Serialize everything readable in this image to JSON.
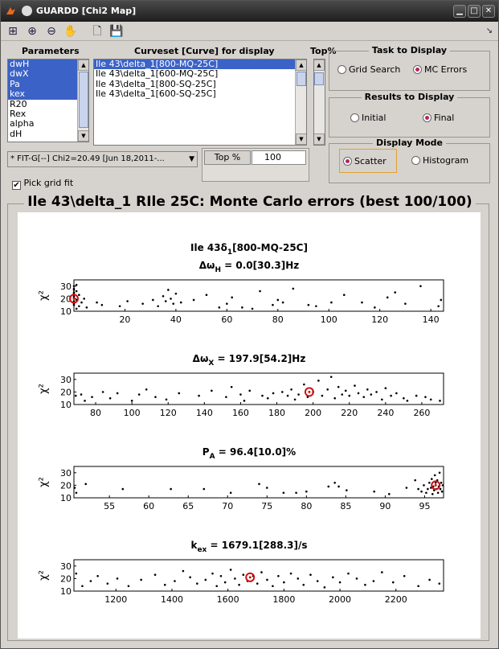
{
  "window": {
    "title": "GUARDD [Chi2 Map]"
  },
  "toolbar": {
    "tools": [
      "layout-icon",
      "zoom-in-icon",
      "zoom-out-icon",
      "pan-hand-icon",
      "new-file-icon",
      "save-icon"
    ]
  },
  "parameters": {
    "label": "Parameters",
    "items": [
      {
        "text": "dwH",
        "sel": true
      },
      {
        "text": "dwX",
        "sel": true
      },
      {
        "text": "Pa",
        "sel": true
      },
      {
        "text": "kex",
        "sel": true
      },
      {
        "text": "R20",
        "sel": false
      },
      {
        "text": "Rex",
        "sel": false
      },
      {
        "text": "alpha",
        "sel": false
      },
      {
        "text": "dH",
        "sel": false
      }
    ]
  },
  "curveset": {
    "label": "Curveset [Curve] for display",
    "items": [
      {
        "text": "Ile 43\\delta_1[800-MQ-25C]",
        "sel": true
      },
      {
        "text": "Ile 43\\delta_1[600-MQ-25C]",
        "sel": false
      },
      {
        "text": "Ile 43\\delta_1[800-SQ-25C]",
        "sel": false
      },
      {
        "text": "Ile 43\\delta_1[600-SQ-25C]",
        "sel": false
      }
    ]
  },
  "top_percent": {
    "label": "Top%",
    "field_label": "Top %",
    "value": "100"
  },
  "fit_dropdown": {
    "value": "* FIT-G[--] Chi2=20.49 [Jun 18,2011-..."
  },
  "pick_grid": {
    "label": "Pick grid fit",
    "checked": true
  },
  "task": {
    "title": "Task to Display",
    "opt1": "Grid Search",
    "opt2": "MC Errors",
    "selected": 2
  },
  "results": {
    "title": "Results to Display",
    "opt1": "Initial",
    "opt2": "Final",
    "selected": 2
  },
  "mode": {
    "title": "Display Mode",
    "opt1": "Scatter",
    "opt2": "Histogram",
    "selected": 1
  },
  "panel": {
    "title": "Ile 43\\delta_1 RIle 25C: Monte Carlo errors (best 100/100)"
  },
  "chart_data": [
    {
      "type": "scatter",
      "title_line1": "Ile 43δ",
      "title_line1_sub": "1",
      "title_line1_tail": "[800-MQ-25C]",
      "title": "Δω",
      "title_sub": "H",
      "title_tail": " = 0.0[30.3]Hz",
      "ylabel": "χ²",
      "xlim": [
        0,
        145
      ],
      "ylim": [
        10,
        35
      ],
      "xticks": [
        20,
        40,
        60,
        80,
        100,
        120,
        140
      ],
      "yticks": [
        10,
        20,
        30
      ],
      "best": {
        "x": 0,
        "y": 20
      },
      "points": [
        [
          0,
          15
        ],
        [
          0,
          18
        ],
        [
          0,
          22
        ],
        [
          0,
          25
        ],
        [
          0,
          27
        ],
        [
          0,
          30
        ],
        [
          0,
          16
        ],
        [
          0,
          21
        ],
        [
          0,
          24
        ],
        [
          0,
          28
        ],
        [
          1,
          12
        ],
        [
          1,
          19
        ],
        [
          1,
          26
        ],
        [
          1,
          31
        ],
        [
          2,
          14
        ],
        [
          2,
          23
        ],
        [
          3,
          17
        ],
        [
          4,
          20
        ],
        [
          5,
          13
        ],
        [
          9,
          17
        ],
        [
          11,
          15
        ],
        [
          18,
          14
        ],
        [
          21,
          18
        ],
        [
          27,
          16
        ],
        [
          31,
          19
        ],
        [
          33,
          14
        ],
        [
          35,
          22
        ],
        [
          36,
          18
        ],
        [
          37,
          27
        ],
        [
          38,
          20
        ],
        [
          39,
          16
        ],
        [
          40,
          24
        ],
        [
          42,
          17
        ],
        [
          47,
          19
        ],
        [
          52,
          23
        ],
        [
          57,
          13
        ],
        [
          60,
          16
        ],
        [
          62,
          21
        ],
        [
          66,
          13
        ],
        [
          70,
          12
        ],
        [
          73,
          26
        ],
        [
          78,
          15
        ],
        [
          80,
          19
        ],
        [
          82,
          17
        ],
        [
          86,
          28
        ],
        [
          92,
          15
        ],
        [
          95,
          14
        ],
        [
          101,
          17
        ],
        [
          106,
          23
        ],
        [
          113,
          17
        ],
        [
          118,
          13
        ],
        [
          123,
          21
        ],
        [
          126,
          25
        ],
        [
          130,
          16
        ],
        [
          136,
          30
        ],
        [
          143,
          14
        ],
        [
          144,
          19
        ]
      ]
    },
    {
      "type": "scatter",
      "title": "Δω",
      "title_sub": "X",
      "title_tail": " = 197.9[54.2]Hz",
      "ylabel": "χ²",
      "xlim": [
        68,
        272
      ],
      "ylim": [
        10,
        35
      ],
      "xticks": [
        80,
        100,
        120,
        140,
        160,
        180,
        200,
        220,
        240,
        260
      ],
      "yticks": [
        10,
        20,
        30
      ],
      "best": {
        "x": 197.9,
        "y": 20
      },
      "points": [
        [
          69,
          17
        ],
        [
          72,
          18
        ],
        [
          74,
          13
        ],
        [
          78,
          16
        ],
        [
          84,
          20
        ],
        [
          88,
          15
        ],
        [
          92,
          19
        ],
        [
          100,
          13
        ],
        [
          104,
          18
        ],
        [
          108,
          22
        ],
        [
          113,
          16
        ],
        [
          119,
          14
        ],
        [
          126,
          19
        ],
        [
          137,
          17
        ],
        [
          144,
          21
        ],
        [
          152,
          16
        ],
        [
          155,
          24
        ],
        [
          160,
          18
        ],
        [
          162,
          13
        ],
        [
          165,
          21
        ],
        [
          172,
          17
        ],
        [
          175,
          15
        ],
        [
          178,
          19
        ],
        [
          183,
          20
        ],
        [
          186,
          17
        ],
        [
          188,
          22
        ],
        [
          190,
          14
        ],
        [
          192,
          18
        ],
        [
          195,
          26
        ],
        [
          197,
          16
        ],
        [
          200,
          20
        ],
        [
          203,
          29
        ],
        [
          205,
          17
        ],
        [
          208,
          22
        ],
        [
          210,
          32
        ],
        [
          212,
          15
        ],
        [
          214,
          24
        ],
        [
          216,
          18
        ],
        [
          218,
          21
        ],
        [
          220,
          17
        ],
        [
          223,
          25
        ],
        [
          225,
          19
        ],
        [
          228,
          16
        ],
        [
          230,
          22
        ],
        [
          232,
          18
        ],
        [
          235,
          20
        ],
        [
          238,
          14
        ],
        [
          240,
          23
        ],
        [
          243,
          17
        ],
        [
          246,
          19
        ],
        [
          250,
          15
        ],
        [
          252,
          13
        ],
        [
          257,
          17
        ],
        [
          262,
          16
        ],
        [
          265,
          14
        ],
        [
          270,
          13
        ]
      ]
    },
    {
      "type": "scatter",
      "title": "P",
      "title_sub": "A",
      "title_tail": " = 96.4[10.0]%",
      "ylabel": "χ²",
      "xlim": [
        50.5,
        97.4
      ],
      "ylim": [
        10,
        35
      ],
      "xticks": [
        55,
        60,
        65,
        70,
        75,
        80,
        85,
        90,
        95
      ],
      "yticks": [
        10,
        20,
        30
      ],
      "best": {
        "x": 96.4,
        "y": 20
      },
      "points": [
        [
          50.6,
          18
        ],
        [
          50.8,
          14
        ],
        [
          52,
          21
        ],
        [
          56.7,
          17
        ],
        [
          62.8,
          17
        ],
        [
          67,
          17
        ],
        [
          70.4,
          14
        ],
        [
          74,
          21
        ],
        [
          75,
          18
        ],
        [
          77.1,
          14
        ],
        [
          78.7,
          14
        ],
        [
          80,
          15
        ],
        [
          82.8,
          19
        ],
        [
          83.6,
          22
        ],
        [
          84.1,
          19
        ],
        [
          85.1,
          16
        ],
        [
          88.6,
          15
        ],
        [
          90.5,
          13
        ],
        [
          92.7,
          18
        ],
        [
          93.8,
          24
        ],
        [
          94.2,
          17
        ],
        [
          94.6,
          15
        ],
        [
          94.9,
          20
        ],
        [
          95.2,
          14
        ],
        [
          95.4,
          17
        ],
        [
          95.6,
          22
        ],
        [
          95.8,
          18
        ],
        [
          95.9,
          25
        ],
        [
          96.0,
          13
        ],
        [
          96.1,
          19
        ],
        [
          96.2,
          16
        ],
        [
          96.3,
          28
        ],
        [
          96.4,
          22
        ],
        [
          96.5,
          17
        ],
        [
          96.6,
          24
        ],
        [
          96.7,
          14
        ],
        [
          96.8,
          19
        ],
        [
          96.9,
          30
        ],
        [
          97.0,
          17
        ],
        [
          97.1,
          22
        ],
        [
          97.2,
          15
        ],
        [
          97.3,
          20
        ]
      ]
    },
    {
      "type": "scatter",
      "title": "k",
      "title_sub": "ex",
      "title_tail": " = 1679.1[288.3]/s",
      "ylabel": "χ²",
      "xlim": [
        1050,
        2370
      ],
      "ylim": [
        10,
        35
      ],
      "xticks": [
        1200,
        1400,
        1600,
        1800,
        2000,
        2200
      ],
      "yticks": [
        10,
        20,
        30
      ],
      "best": {
        "x": 1679.1,
        "y": 21
      },
      "points": [
        [
          1058,
          24
        ],
        [
          1080,
          14
        ],
        [
          1110,
          18
        ],
        [
          1135,
          22
        ],
        [
          1170,
          16
        ],
        [
          1205,
          20
        ],
        [
          1245,
          14
        ],
        [
          1290,
          19
        ],
        [
          1340,
          23
        ],
        [
          1375,
          15
        ],
        [
          1410,
          18
        ],
        [
          1440,
          26
        ],
        [
          1465,
          21
        ],
        [
          1490,
          16
        ],
        [
          1520,
          19
        ],
        [
          1545,
          24
        ],
        [
          1560,
          14
        ],
        [
          1575,
          22
        ],
        [
          1590,
          17
        ],
        [
          1610,
          27
        ],
        [
          1625,
          20
        ],
        [
          1640,
          15
        ],
        [
          1655,
          23
        ],
        [
          1670,
          18
        ],
        [
          1690,
          22
        ],
        [
          1705,
          16
        ],
        [
          1720,
          25
        ],
        [
          1740,
          19
        ],
        [
          1760,
          14
        ],
        [
          1780,
          22
        ],
        [
          1800,
          17
        ],
        [
          1825,
          24
        ],
        [
          1850,
          20
        ],
        [
          1870,
          15
        ],
        [
          1895,
          23
        ],
        [
          1920,
          18
        ],
        [
          1945,
          13
        ],
        [
          1975,
          21
        ],
        [
          2000,
          17
        ],
        [
          2030,
          24
        ],
        [
          2060,
          20
        ],
        [
          2090,
          15
        ],
        [
          2120,
          18
        ],
        [
          2150,
          25
        ],
        [
          2190,
          17
        ],
        [
          2230,
          22
        ],
        [
          2280,
          14
        ],
        [
          2320,
          19
        ],
        [
          2355,
          16
        ]
      ]
    }
  ]
}
